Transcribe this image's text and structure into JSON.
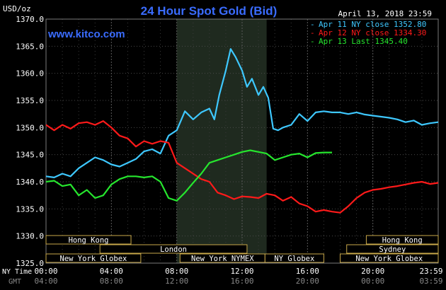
{
  "chart_data": {
    "type": "line",
    "title": "24 Hour Spot Gold (Bid)",
    "watermark": "www.kitco.com",
    "date": "April 13, 2018 23:59",
    "y_axis": {
      "label": "USD/oz",
      "ticks": [
        "1370.0",
        "1365.0",
        "1360.0",
        "1355.0",
        "1350.0",
        "1345.0",
        "1340.0",
        "1335.0",
        "1330.0",
        "1325.0"
      ],
      "ylim": [
        1325,
        1370
      ]
    },
    "x_axis": {
      "row1_label": "NY Time",
      "row2_label": "GMT",
      "ny_ticks": [
        "00:00",
        "04:00",
        "08:00",
        "12:00",
        "16:00",
        "20:00",
        "23:59"
      ],
      "gmt_ticks": [
        "04:00",
        "08:00",
        "12:00",
        "16:00",
        "20:00",
        "00:00",
        "03:59"
      ],
      "xlim": [
        0,
        24
      ]
    },
    "legend": [
      {
        "text": "Apr 11 NY close 1352.80",
        "color": "#3ec8ff"
      },
      {
        "text": "Apr 12 NY close 1334.30",
        "color": "#ff1a1a"
      },
      {
        "text": "Apr 13 Last 1345.40",
        "color": "#26e62e"
      }
    ],
    "highlight_region_hours": [
      8.0,
      13.5
    ],
    "sessions": [
      {
        "label": "Hong Kong",
        "start": 0,
        "end": 5.2,
        "row": 0
      },
      {
        "label": "London",
        "start": 3.3,
        "end": 12.3,
        "row": 1
      },
      {
        "label": "New York Globex",
        "start": 0,
        "end": 5.8,
        "row": 2
      },
      {
        "label": "New York NYMEX",
        "start": 8.2,
        "end": 13.4,
        "row": 2
      },
      {
        "label": "NY Globex",
        "start": 13.4,
        "end": 17.0,
        "row": 2
      },
      {
        "label": "Hong Kong",
        "start": 19.6,
        "end": 24,
        "row": 0
      },
      {
        "label": "Sydney",
        "start": 18.4,
        "end": 24,
        "row": 1
      },
      {
        "label": "New York Globex",
        "start": 18.0,
        "end": 24,
        "row": 2
      }
    ],
    "series": [
      {
        "name": "Apr 11",
        "color": "#3ec8ff",
        "x": [
          0,
          0.5,
          1,
          1.5,
          2,
          2.5,
          3,
          3.5,
          4,
          4.5,
          5,
          5.5,
          6,
          6.5,
          7,
          7.5,
          8,
          8.5,
          9,
          9.5,
          10,
          10.3,
          10.6,
          11,
          11.3,
          11.6,
          12,
          12.3,
          12.6,
          13,
          13.3,
          13.6,
          13.9,
          14.2,
          14.5,
          15,
          15.5,
          16,
          16.5,
          17,
          17.5,
          18,
          18.5,
          19,
          19.5,
          20,
          20.5,
          21,
          21.5,
          22,
          22.5,
          23,
          23.5,
          24
        ],
        "values": [
          1341,
          1340.8,
          1341.5,
          1341,
          1342.5,
          1343.5,
          1344.5,
          1344,
          1343.2,
          1342.8,
          1343.5,
          1344.2,
          1345.6,
          1346.0,
          1345.2,
          1348.5,
          1349.5,
          1353.0,
          1351.5,
          1352.8,
          1353.5,
          1351.5,
          1356.0,
          1360.5,
          1364.5,
          1363.0,
          1360.5,
          1357.5,
          1359.0,
          1356.0,
          1357.5,
          1355.5,
          1349.8,
          1349.5,
          1350.0,
          1350.5,
          1352.5,
          1351.2,
          1352.8,
          1353.0,
          1352.8,
          1352.8,
          1352.5,
          1352.8,
          1352.4,
          1352.2,
          1352.0,
          1351.8,
          1351.5,
          1351.0,
          1351.3,
          1350.5,
          1350.8,
          1351.0
        ]
      },
      {
        "name": "Apr 12",
        "color": "#ff1a1a",
        "x": [
          0,
          0.5,
          1,
          1.5,
          2,
          2.5,
          3,
          3.5,
          4,
          4.5,
          5,
          5.5,
          6,
          6.5,
          7,
          7.5,
          8,
          8.5,
          9,
          9.5,
          10,
          10.5,
          11,
          11.5,
          12,
          12.5,
          13,
          13.5,
          14,
          14.5,
          15,
          15.5,
          16,
          16.5,
          17,
          17.5,
          18,
          18.5,
          19,
          19.5,
          20,
          20.5,
          21,
          21.5,
          22,
          22.5,
          23,
          23.5,
          24
        ],
        "values": [
          1350.5,
          1349.5,
          1350.5,
          1349.8,
          1350.8,
          1351.0,
          1350.5,
          1351.2,
          1350.0,
          1348.5,
          1348.0,
          1346.5,
          1347.5,
          1347.0,
          1347.5,
          1347.2,
          1343.5,
          1342.5,
          1341.5,
          1340.5,
          1340.0,
          1338.0,
          1337.5,
          1336.8,
          1337.3,
          1337.2,
          1337.0,
          1337.8,
          1337.5,
          1336.5,
          1337.2,
          1336.0,
          1335.5,
          1334.5,
          1334.8,
          1334.5,
          1334.3,
          1335.5,
          1337.0,
          1338.0,
          1338.5,
          1338.7,
          1339.0,
          1339.2,
          1339.5,
          1339.8,
          1340.0,
          1339.6,
          1339.8
        ]
      },
      {
        "name": "Apr 13",
        "color": "#26e62e",
        "x": [
          0,
          0.5,
          1,
          1.5,
          2,
          2.5,
          3,
          3.5,
          4,
          4.5,
          5,
          5.5,
          6,
          6.5,
          7,
          7.5,
          8,
          8.5,
          9,
          9.5,
          10,
          10.5,
          11,
          11.5,
          12,
          12.5,
          13,
          13.5,
          14,
          14.5,
          15,
          15.5,
          16,
          16.5,
          17,
          17.5
        ],
        "values": [
          1340.0,
          1340.2,
          1339.2,
          1339.5,
          1337.5,
          1338.5,
          1337.0,
          1337.5,
          1339.5,
          1340.5,
          1341.0,
          1341.0,
          1340.8,
          1341.0,
          1340.0,
          1337.0,
          1336.5,
          1338.0,
          1339.8,
          1341.5,
          1343.5,
          1344.0,
          1344.5,
          1345.0,
          1345.5,
          1345.8,
          1345.5,
          1345.2,
          1344.0,
          1344.5,
          1345.0,
          1345.2,
          1344.5,
          1345.3,
          1345.4,
          1345.4
        ]
      }
    ]
  }
}
